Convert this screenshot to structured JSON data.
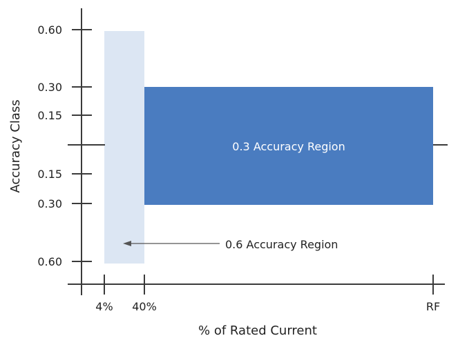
{
  "chart_data": {
    "type": "area",
    "xlabel": "% of Rated Current",
    "ylabel": "Accuracy Class",
    "x_tick_labels": [
      "4%",
      "40%",
      "RF"
    ],
    "y_tick_labels_upper": [
      "0.60",
      "0.30",
      "0.15"
    ],
    "y_tick_labels_lower": [
      "0.15",
      "0.30",
      "0.60"
    ],
    "regions": [
      {
        "name": "0.6 Accuracy Region",
        "x_range": [
          "4%",
          "40%"
        ],
        "y_range": [
          -0.6,
          0.6
        ],
        "color": "#dce6f3",
        "label_text": "0.6 Accuracy Region"
      },
      {
        "name": "0.3 Accuracy Region",
        "x_range": [
          "40%",
          "RF"
        ],
        "y_range": [
          -0.3,
          0.3
        ],
        "color": "#4a7cc0",
        "label_text": "0.3 Accuracy Region"
      }
    ],
    "grid": false,
    "legend": "none"
  },
  "colors": {
    "axis": "#3a3a3a",
    "region_06": "#dce6f3",
    "region_03": "#4a7cc0"
  }
}
